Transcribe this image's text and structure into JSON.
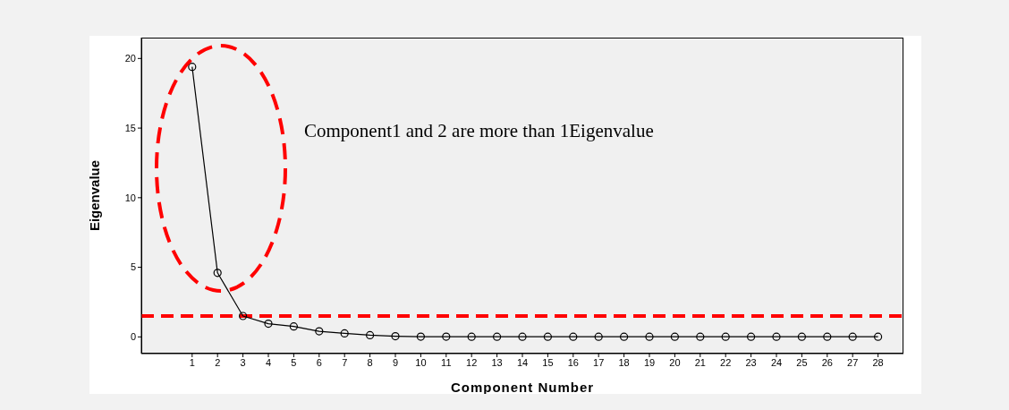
{
  "chart_data": {
    "type": "line",
    "xlabel": "Component Number",
    "ylabel": "Eigenvalue",
    "x": [
      1,
      2,
      3,
      4,
      5,
      6,
      7,
      8,
      9,
      10,
      11,
      12,
      13,
      14,
      15,
      16,
      17,
      18,
      19,
      20,
      21,
      22,
      23,
      24,
      25,
      26,
      27,
      28
    ],
    "series": [
      {
        "color": "#000000",
        "values": [
          19.4,
          4.6,
          1.5,
          0.95,
          0.75,
          0.4,
          0.25,
          0.12,
          0.05,
          0.02,
          0.02,
          0.01,
          0.01,
          0.01,
          0.01,
          0.01,
          0.01,
          0.01,
          0.01,
          0.01,
          0.01,
          0.01,
          0.01,
          0.01,
          0.01,
          0.01,
          0.01,
          0.01
        ]
      }
    ],
    "xlim": [
      -1,
      29
    ],
    "xticks": [
      1,
      2,
      3,
      4,
      5,
      6,
      7,
      8,
      9,
      10,
      11,
      12,
      13,
      14,
      15,
      16,
      17,
      18,
      19,
      20,
      21,
      22,
      23,
      24,
      25,
      26,
      27,
      28
    ],
    "ylim": [
      -1.2,
      21.5
    ],
    "yticks": [
      0,
      5,
      10,
      15,
      20
    ],
    "ref_lines": [
      {
        "axis": "y",
        "value": 1.5,
        "color": "#ff0000",
        "line_style": "dashed"
      }
    ],
    "annotations": [
      "Component1 and 2 are more than 1Eigenvalue"
    ],
    "grid": false,
    "marker": "circle",
    "line_style": "solid"
  }
}
